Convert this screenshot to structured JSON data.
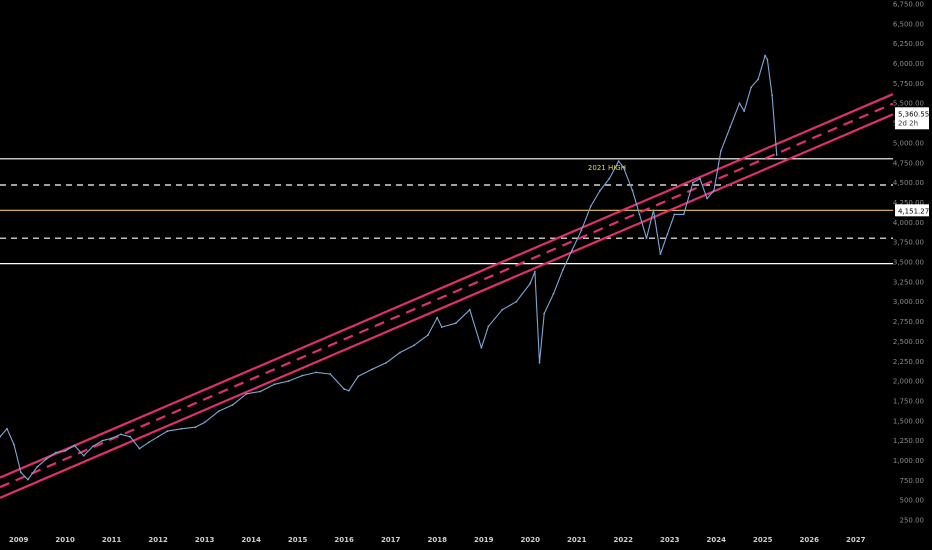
{
  "chart_data": {
    "type": "line",
    "title": "",
    "xlabel": "",
    "ylabel": "",
    "xlim": [
      2008.6,
      2027.8
    ],
    "ylim": [
      125,
      6800
    ],
    "x_ticks": [
      "2009",
      "2010",
      "2011",
      "2012",
      "2013",
      "2014",
      "2015",
      "2016",
      "2017",
      "2018",
      "2019",
      "2020",
      "2021",
      "2022",
      "2023",
      "2024",
      "2025",
      "2026",
      "2027"
    ],
    "y_ticks": [
      "250.00",
      "500.00",
      "750.00",
      "1,000.00",
      "1,250.00",
      "1,500.00",
      "1,750.00",
      "2,000.00",
      "2,250.00",
      "2,500.00",
      "2,750.00",
      "3,000.00",
      "3,250.00",
      "3,500.00",
      "3,750.00",
      "4,000.00",
      "4,250.00",
      "4,500.00",
      "4,750.00",
      "5,000.00",
      "5,250.00",
      "5,500.00",
      "5,750.00",
      "6,000.00",
      "6,250.00",
      "6,500.00",
      "6,750.00"
    ],
    "y_tick_values": [
      250,
      500,
      750,
      1000,
      1250,
      1500,
      1750,
      2000,
      2250,
      2500,
      2750,
      3000,
      3250,
      3500,
      3750,
      4000,
      4250,
      4500,
      4750,
      5000,
      5250,
      5500,
      5750,
      6000,
      6250,
      6500,
      6750
    ],
    "grid": false,
    "colors": {
      "background": "#000000",
      "price": "#7fa7d6",
      "channel": "#e0306a",
      "level_solid": "#ffffff",
      "level_dashed": "#ffffff",
      "level_gold": "#e8c84a"
    },
    "series": [
      {
        "x": [
          2008.6,
          2008.75,
          2008.9,
          2009.05,
          2009.2,
          2009.4,
          2009.6,
          2009.8,
          2010.0,
          2010.2,
          2010.4,
          2010.6,
          2010.8,
          2011.0,
          2011.2,
          2011.4,
          2011.6,
          2011.8,
          2012.0,
          2012.2,
          2012.5,
          2012.8,
          2013.0,
          2013.3,
          2013.6,
          2013.9,
          2014.2,
          2014.5,
          2014.8,
          2015.1,
          2015.4,
          2015.7,
          2016.0,
          2016.1,
          2016.3,
          2016.6,
          2016.9,
          2017.2,
          2017.5,
          2017.8,
          2018.0,
          2018.1,
          2018.4,
          2018.7,
          2018.95,
          2019.1,
          2019.4,
          2019.7,
          2020.0,
          2020.1,
          2020.2,
          2020.3,
          2020.5,
          2020.7,
          2020.9,
          2021.1,
          2021.3,
          2021.5,
          2021.7,
          2021.9,
          2022.0,
          2022.2,
          2022.35,
          2022.5,
          2022.65,
          2022.8,
          2022.95,
          2023.1,
          2023.3,
          2023.5,
          2023.65,
          2023.8,
          2023.95,
          2024.1,
          2024.3,
          2024.5,
          2024.6,
          2024.75,
          2024.9,
          2025.05,
          2025.1,
          2025.2,
          2025.3
        ],
        "y": [
          1300,
          1400,
          1200,
          850,
          760,
          920,
          1020,
          1100,
          1120,
          1190,
          1060,
          1180,
          1250,
          1280,
          1330,
          1300,
          1150,
          1230,
          1300,
          1370,
          1400,
          1420,
          1480,
          1620,
          1700,
          1840,
          1870,
          1960,
          2000,
          2070,
          2110,
          2090,
          1900,
          1880,
          2060,
          2150,
          2230,
          2360,
          2450,
          2580,
          2800,
          2680,
          2730,
          2900,
          2420,
          2690,
          2900,
          3000,
          3230,
          3380,
          2230,
          2850,
          3100,
          3400,
          3650,
          3900,
          4200,
          4400,
          4550,
          4770,
          4700,
          4400,
          4100,
          3800,
          4150,
          3600,
          3850,
          4100,
          4100,
          4500,
          4550,
          4300,
          4400,
          4900,
          5200,
          5500,
          5400,
          5700,
          5800,
          6100,
          6050,
          5600,
          4850
        ]
      }
    ],
    "channel": {
      "start": [
        2008.6,
        665
      ],
      "end": [
        2027.8,
        5495
      ],
      "lower_offset": -135,
      "upper_offset": 120
    },
    "levels": [
      {
        "value": 4800,
        "style": "solid",
        "label": "2021 HIGH"
      },
      {
        "value": 4470,
        "style": "dashed"
      },
      {
        "value": 4151.27,
        "style": "gold"
      },
      {
        "value": 3800,
        "style": "dashed"
      },
      {
        "value": 3480,
        "style": "solid"
      }
    ],
    "price_tag": {
      "value": 5360.55,
      "text": "5,360.55",
      "sub": "2d 2h"
    },
    "gold_tag": {
      "value": 4151.27,
      "text": "4,151.27"
    }
  }
}
